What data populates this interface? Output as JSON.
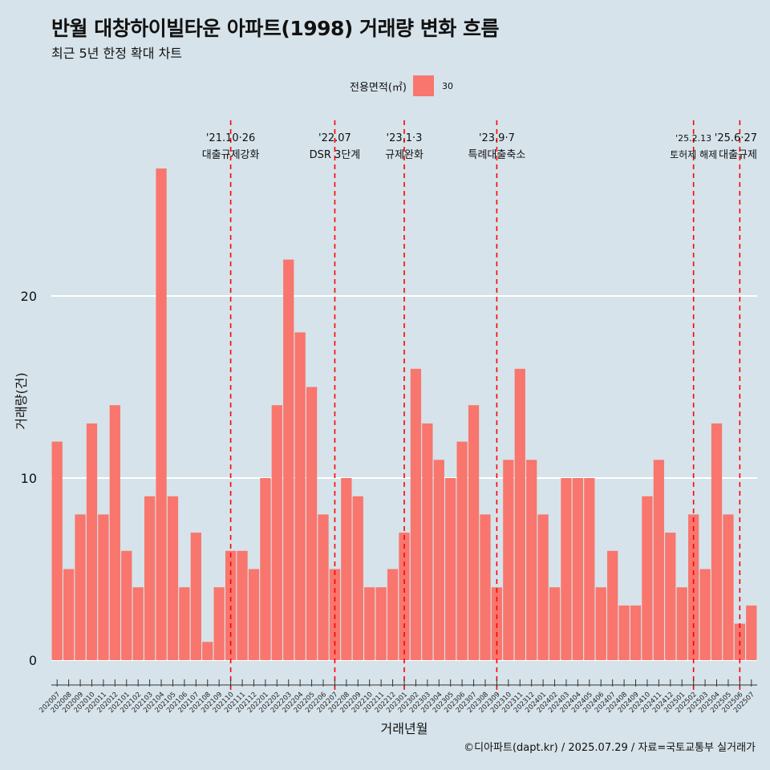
{
  "title": "반월 대창하이빌타운 아파트(1998) 거래량 변화 흐름",
  "subtitle": "최근 5년 한정 확대 차트",
  "caption": "©디아파트(dapt.kr) / 2025.07.29 / 자료=국토교통부 실거래가",
  "colors": {
    "bar": "#f8766d",
    "background": "#d6e3ea",
    "event_line": "#ff0000",
    "grid": "#ffffff"
  },
  "chart_data": {
    "type": "bar",
    "xlabel": "거래년월",
    "ylabel": "거래량(건)",
    "ylim": [
      0,
      27
    ],
    "yticks": [
      0,
      10,
      20
    ],
    "grid": true,
    "legend": {
      "title": "전용면적(㎡)",
      "position": "top",
      "entries": [
        "30"
      ]
    },
    "categories": [
      "202007",
      "202008",
      "202009",
      "202010",
      "202011",
      "202012",
      "202101",
      "202102",
      "202103",
      "202104",
      "202105",
      "202106",
      "202107",
      "202108",
      "202109",
      "202110",
      "202111",
      "202112",
      "202201",
      "202202",
      "202203",
      "202204",
      "202205",
      "202206",
      "202207",
      "202208",
      "202209",
      "202210",
      "202211",
      "202212",
      "202301",
      "202302",
      "202303",
      "202304",
      "202305",
      "202306",
      "202307",
      "202308",
      "202309",
      "202310",
      "202311",
      "202312",
      "202401",
      "202402",
      "202403",
      "202404",
      "202405",
      "202406",
      "202407",
      "202408",
      "202409",
      "202410",
      "202411",
      "202412",
      "202501",
      "202502",
      "202503",
      "202504",
      "202505",
      "202506",
      "202507"
    ],
    "series": [
      {
        "name": "30",
        "values": [
          12,
          5,
          8,
          13,
          8,
          14,
          6,
          4,
          9,
          27,
          9,
          4,
          7,
          1,
          4,
          6,
          6,
          5,
          10,
          14,
          22,
          18,
          15,
          8,
          5,
          10,
          9,
          4,
          4,
          5,
          7,
          16,
          13,
          11,
          10,
          12,
          14,
          8,
          4,
          11,
          16,
          11,
          8,
          4,
          10,
          10,
          10,
          4,
          6,
          3,
          3,
          9,
          11,
          7,
          4,
          8,
          5,
          13,
          8,
          2,
          3
        ]
      }
    ],
    "annotations": [
      {
        "category": "202110",
        "date": "'21.10·26",
        "label": "대출규제강화"
      },
      {
        "category": "202207",
        "date": "'22.07",
        "label": "DSR 3단계"
      },
      {
        "category": "202301",
        "date": "'23.1·3",
        "label": "규제완화"
      },
      {
        "category": "202309",
        "date": "'23.9·7",
        "label": "특례대출축소"
      },
      {
        "category": "202502",
        "date": "'25.2.13",
        "label": "토허제 해제"
      },
      {
        "category": "202506",
        "date": "'25.6·27",
        "label": "대출규제"
      }
    ]
  }
}
